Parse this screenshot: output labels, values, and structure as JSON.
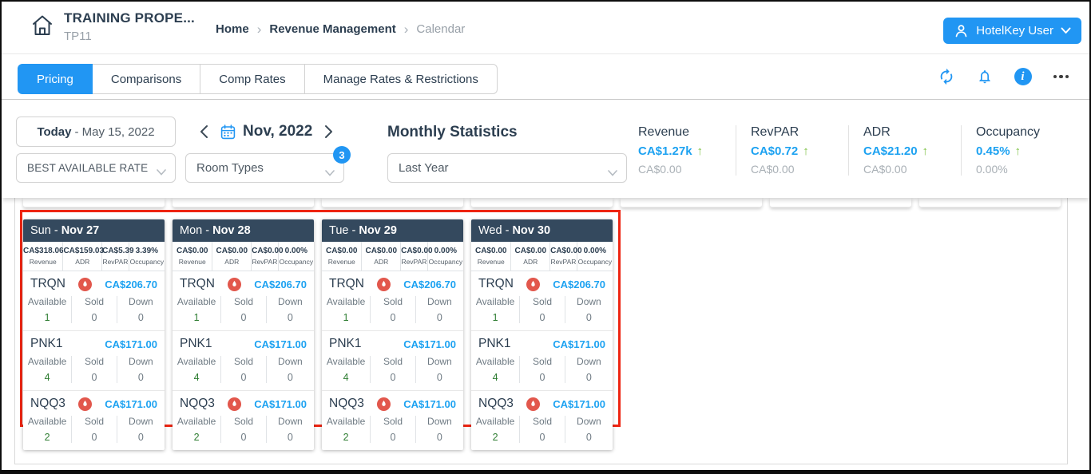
{
  "colors": {
    "accent": "#2196f3",
    "value_blue": "#1da2f1",
    "navy": "#2c3e50",
    "muted": "#98a0a8",
    "green": "#7cc142",
    "available_green": "#2e7d32",
    "card_header": "#34495e",
    "flag_red": "#e2574c",
    "highlight_red": "#ee2411"
  },
  "header": {
    "property_name": "TRAINING PROPE...",
    "property_code": "TP11",
    "breadcrumb": [
      {
        "label": "Home",
        "link": true
      },
      {
        "label": "Revenue Management",
        "link": true
      },
      {
        "label": "Calendar",
        "link": false
      }
    ],
    "user_button": {
      "label": "HotelKey User"
    }
  },
  "tabs": [
    {
      "label": "Pricing",
      "active": true
    },
    {
      "label": "Comparisons",
      "active": false
    },
    {
      "label": "Comp Rates",
      "active": false
    },
    {
      "label": "Manage Rates & Restrictions",
      "active": false
    }
  ],
  "filters": {
    "today_label": "Today",
    "today_date": "- May 15, 2022",
    "month_label": "Nov, 2022",
    "rate_plan": "BEST AVAILABLE RATE",
    "room_types_label": "Room Types",
    "room_types_badge": "3",
    "monthly_statistics_title": "Monthly Statistics",
    "period": "Last Year"
  },
  "stats": [
    {
      "label": "Revenue",
      "value": "CA$1.27k",
      "trend": "up",
      "compare": "CA$0.00"
    },
    {
      "label": "RevPAR",
      "value": "CA$0.72",
      "trend": "up",
      "compare": "CA$0.00"
    },
    {
      "label": "ADR",
      "value": "CA$21.20",
      "trend": "up",
      "compare": "CA$0.00"
    },
    {
      "label": "Occupancy",
      "value": "0.45%",
      "trend": "up",
      "compare": "0.00%"
    }
  ],
  "calendar": {
    "stat_labels": [
      "Revenue",
      "ADR",
      "RevPAR",
      "Occupancy"
    ],
    "room_col_labels": [
      "Available",
      "Sold",
      "Down"
    ],
    "days": [
      {
        "day": "Sun",
        "date": "Nov 27",
        "stats": [
          "CA$318.06",
          "CA$159.03",
          "CA$5.39",
          "3.39%"
        ],
        "rooms": [
          {
            "code": "TRQN",
            "flag": true,
            "price": "CA$206.70",
            "available": "1",
            "sold": "0",
            "down": "0"
          },
          {
            "code": "PNK1",
            "flag": false,
            "price": "CA$171.00",
            "available": "4",
            "sold": "0",
            "down": "0"
          },
          {
            "code": "NQQ3",
            "flag": true,
            "price": "CA$171.00",
            "available": "2",
            "sold": "0",
            "down": "0"
          }
        ]
      },
      {
        "day": "Mon",
        "date": "Nov 28",
        "stats": [
          "CA$0.00",
          "CA$0.00",
          "CA$0.00",
          "0.00%"
        ],
        "rooms": [
          {
            "code": "TRQN",
            "flag": true,
            "price": "CA$206.70",
            "available": "1",
            "sold": "0",
            "down": "0"
          },
          {
            "code": "PNK1",
            "flag": false,
            "price": "CA$171.00",
            "available": "4",
            "sold": "0",
            "down": "0"
          },
          {
            "code": "NQQ3",
            "flag": true,
            "price": "CA$171.00",
            "available": "2",
            "sold": "0",
            "down": "0"
          }
        ]
      },
      {
        "day": "Tue",
        "date": "Nov 29",
        "stats": [
          "CA$0.00",
          "CA$0.00",
          "CA$0.00",
          "0.00%"
        ],
        "rooms": [
          {
            "code": "TRQN",
            "flag": true,
            "price": "CA$206.70",
            "available": "1",
            "sold": "0",
            "down": "0"
          },
          {
            "code": "PNK1",
            "flag": false,
            "price": "CA$171.00",
            "available": "4",
            "sold": "0",
            "down": "0"
          },
          {
            "code": "NQQ3",
            "flag": true,
            "price": "CA$171.00",
            "available": "2",
            "sold": "0",
            "down": "0"
          }
        ]
      },
      {
        "day": "Wed",
        "date": "Nov 30",
        "stats": [
          "CA$0.00",
          "CA$0.00",
          "CA$0.00",
          "0.00%"
        ],
        "rooms": [
          {
            "code": "TRQN",
            "flag": true,
            "price": "CA$206.70",
            "available": "1",
            "sold": "0",
            "down": "0"
          },
          {
            "code": "PNK1",
            "flag": false,
            "price": "CA$171.00",
            "available": "4",
            "sold": "0",
            "down": "0"
          },
          {
            "code": "NQQ3",
            "flag": true,
            "price": "CA$171.00",
            "available": "2",
            "sold": "0",
            "down": "0"
          }
        ]
      }
    ]
  }
}
